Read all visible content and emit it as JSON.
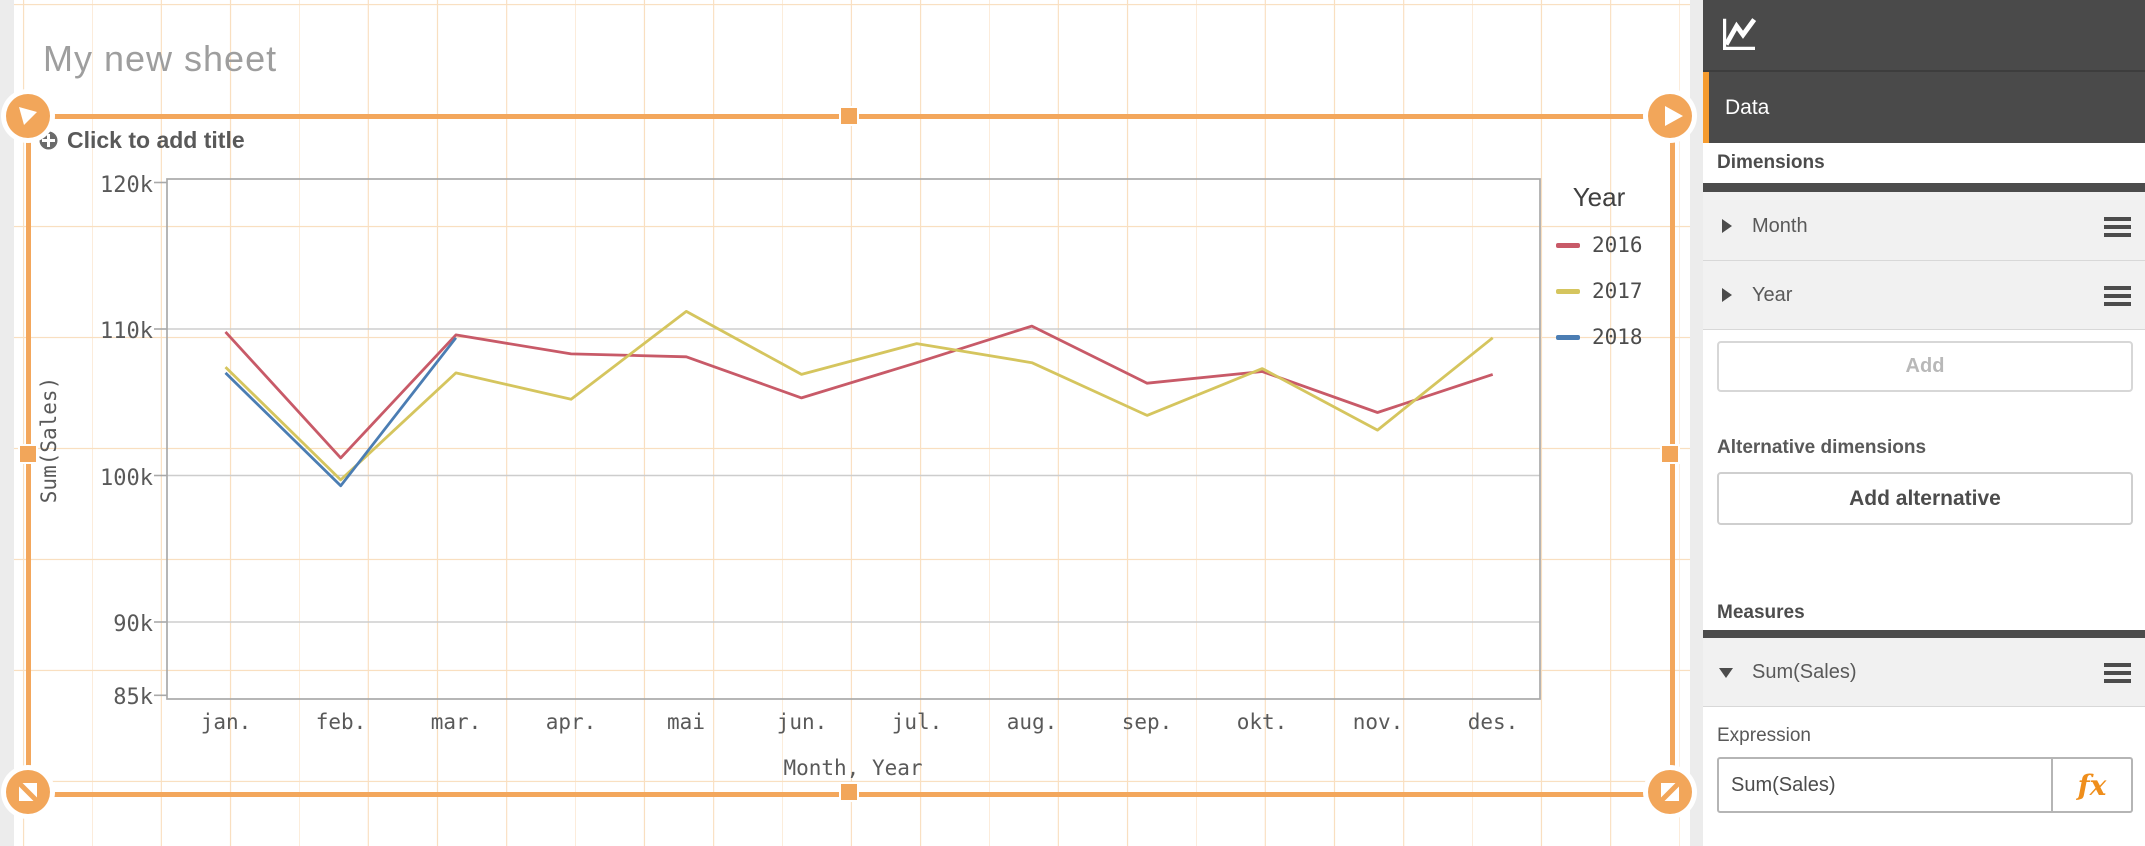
{
  "sheet": {
    "title_placeholder": "My new sheet",
    "chart_object": {
      "title_placeholder": "Click to add title"
    }
  },
  "chart_data": {
    "type": "line",
    "title": "",
    "xlabel": "Month, Year",
    "ylabel": "Sum(Sales)",
    "legend_title": "Year",
    "legend_position": "right",
    "grid": "horizontal",
    "categories": [
      "jan.",
      "feb.",
      "mar.",
      "apr.",
      "mai",
      "jun.",
      "jul.",
      "aug.",
      "sep.",
      "okt.",
      "nov.",
      "des."
    ],
    "y_ticks": [
      {
        "label": "120k",
        "value": 120000,
        "grid": false
      },
      {
        "label": "110k",
        "value": 110000,
        "grid": true
      },
      {
        "label": "100k",
        "value": 100000,
        "grid": true
      },
      {
        "label": "90k",
        "value": 90000,
        "grid": true
      },
      {
        "label": "85k",
        "value": 85000,
        "grid": false
      }
    ],
    "ylim": [
      84700,
      120400
    ],
    "series": [
      {
        "name": "2016",
        "color": "#c85a68",
        "values": [
          109800,
          101200,
          109600,
          108300,
          108100,
          105300,
          107700,
          110200,
          106300,
          107100,
          104300,
          106900
        ]
      },
      {
        "name": "2017",
        "color": "#d5c55e",
        "values": [
          107400,
          99700,
          107000,
          105200,
          111200,
          106900,
          109000,
          107700,
          104100,
          107300,
          103100,
          109400
        ]
      },
      {
        "name": "2018",
        "color": "#4b7db3",
        "values": [
          107000,
          99300,
          109400,
          null,
          null,
          null,
          null,
          null,
          null,
          null,
          null,
          null
        ]
      }
    ]
  },
  "panel": {
    "tab_label": "Data",
    "dimensions": {
      "heading": "Dimensions",
      "items": [
        {
          "label": "Month"
        },
        {
          "label": "Year"
        }
      ],
      "add_label": "Add"
    },
    "alternative": {
      "heading": "Alternative dimensions",
      "button_label": "Add alternative"
    },
    "measures": {
      "heading": "Measures",
      "items": [
        {
          "label": "Sum(Sales)",
          "expanded": true
        }
      ]
    },
    "expression": {
      "label": "Expression",
      "value": "Sum(Sales)",
      "fx_label": "fx"
    }
  },
  "colors": {
    "frame_orange": "#f3a75c",
    "grid_orange": "#f9dfc0",
    "accent_orange": "#f59b2e",
    "fx_orange": "#ef8e1b",
    "panel_dark": "#4a4a4a",
    "axis_gray": "#a9a9a9",
    "gridline_gray": "#cdcdcd",
    "text_gray": "#595959"
  }
}
